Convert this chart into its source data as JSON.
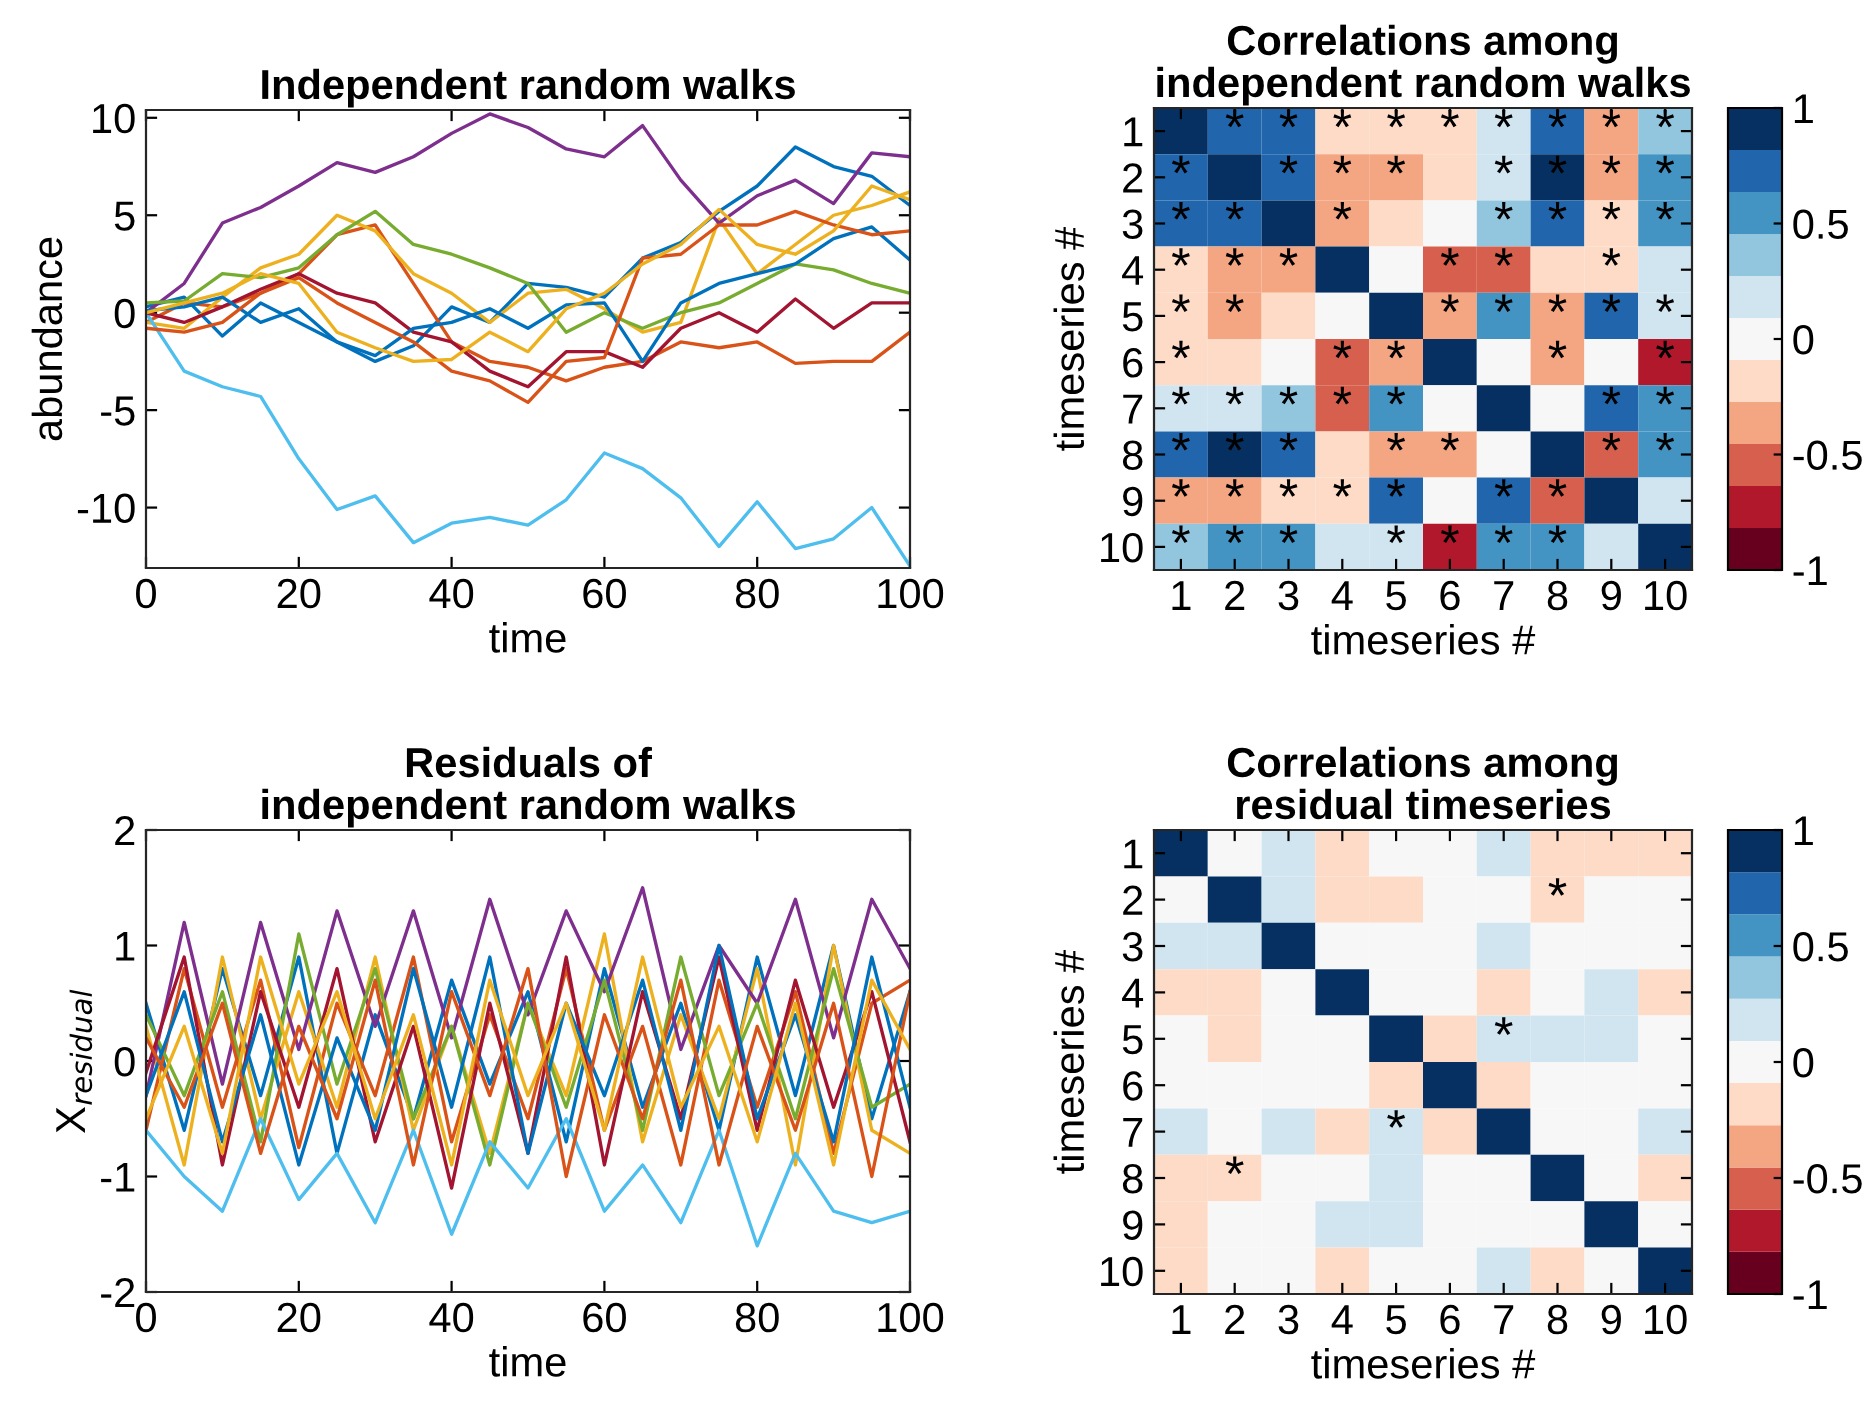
{
  "chart_data": [
    {
      "type": "line",
      "title": "Independent random walks",
      "xlabel": "time",
      "ylabel": "abundance",
      "x": [
        0,
        5,
        10,
        15,
        20,
        25,
        30,
        35,
        40,
        45,
        50,
        55,
        60,
        65,
        70,
        75,
        80,
        85,
        90,
        95,
        100
      ],
      "xlim": [
        0,
        100
      ],
      "xticks": [
        0,
        20,
        40,
        60,
        80,
        100
      ],
      "ylim": [
        -13.1,
        10.4
      ],
      "yticks": [
        -10,
        -5,
        0,
        5,
        10
      ],
      "grid": false,
      "series": [
        {
          "color": "#0072bd",
          "values": [
            0.3,
            0.8,
            -1.2,
            0.5,
            -0.5,
            -1.5,
            -2.5,
            -1.7,
            0.3,
            -0.5,
            1.5,
            1.3,
            0.8,
            2.8,
            3.6,
            5.2,
            6.5,
            8.5,
            7.5,
            7,
            5.5
          ]
        },
        {
          "color": "#d95319",
          "values": [
            -0.5,
            0.5,
            0.3,
            1.0,
            2.0,
            4.0,
            4.5,
            1.5,
            -1.5,
            -2.5,
            -2.8,
            -3.5,
            -2.8,
            -2.5,
            -1.5,
            -1.8,
            -1.5,
            -2.6,
            -2.5,
            -2.5,
            -1
          ]
        },
        {
          "color": "#edb120",
          "values": [
            -0.5,
            -0.8,
            0.8,
            2.3,
            3,
            5,
            4.2,
            2.0,
            1,
            -0.5,
            1,
            1.2,
            0.2,
            -1,
            -0.5,
            4.8,
            2,
            3.5,
            5,
            5.5,
            6.2
          ]
        },
        {
          "color": "#7e2f8e",
          "values": [
            0,
            1.5,
            4.6,
            5.4,
            6.5,
            7.7,
            7.2,
            8,
            9.2,
            10.2,
            9.5,
            8.4,
            8,
            9.6,
            6.8,
            4.6,
            6,
            6.8,
            5.6,
            8.2,
            8
          ]
        },
        {
          "color": "#77ac30",
          "values": [
            0.5,
            0.6,
            2,
            1.8,
            2.3,
            4,
            5.2,
            3.5,
            3,
            2.3,
            1.5,
            -1,
            0,
            -0.8,
            0,
            0.5,
            1.5,
            2.5,
            2.2,
            1.5,
            1
          ]
        },
        {
          "color": "#4dbeee",
          "values": [
            0,
            -3,
            -3.8,
            -4.3,
            -7.5,
            -10.1,
            -9.4,
            -11.8,
            -10.8,
            -10.5,
            -10.9,
            -9.6,
            -7.2,
            -8,
            -9.5,
            -12,
            -9.7,
            -12.1,
            -11.6,
            -10,
            -13
          ]
        },
        {
          "color": "#a2142f",
          "values": [
            0,
            -0.5,
            0.3,
            1.2,
            2,
            1,
            0.5,
            -1,
            -1.5,
            -3,
            -3.8,
            -2,
            -2,
            -2.8,
            -0.8,
            0,
            -1,
            0.7,
            -0.8,
            0.5,
            0.5
          ]
        },
        {
          "color": "#0072bd",
          "values": [
            0.1,
            0.3,
            0.8,
            -0.5,
            0.2,
            -1.5,
            -2.2,
            -0.8,
            -0.5,
            0.2,
            -0.8,
            0.4,
            0.5,
            -2.5,
            0.5,
            1.5,
            2,
            2.5,
            3.8,
            4.4,
            2.7
          ]
        },
        {
          "color": "#d95319",
          "values": [
            -0.8,
            -1,
            -0.5,
            1,
            1.8,
            0.5,
            -0.5,
            -1.5,
            -3,
            -3.5,
            -4.6,
            -2.5,
            -2.3,
            2.8,
            3.0,
            4.5,
            4.5,
            5.2,
            4.5,
            4,
            4.2
          ]
        },
        {
          "color": "#edb120",
          "values": [
            0,
            0.5,
            1,
            2,
            1.5,
            -1,
            -1.8,
            -2.5,
            -2.4,
            -1,
            -2,
            0.2,
            1,
            2.5,
            3.5,
            5.3,
            3.5,
            3,
            4.2,
            6.5,
            5.8
          ]
        }
      ]
    },
    {
      "type": "heatmap",
      "title": "Correlations among\nindependent random walks",
      "xlabel": "timeseries #",
      "ylabel": "timeseries #",
      "categories": [
        "1",
        "2",
        "3",
        "4",
        "5",
        "6",
        "7",
        "8",
        "9",
        "10"
      ],
      "y_categories": [
        "1",
        "2",
        "3",
        "4",
        "5",
        "6",
        "7",
        "8",
        "9",
        "10"
      ],
      "clim": [
        -1,
        1
      ],
      "cticks": [
        -1,
        -0.5,
        0,
        0.5,
        1
      ],
      "cells": [
        [
          1,
          0.7,
          0.7,
          -0.2,
          -0.2,
          -0.2,
          0.2,
          0.7,
          -0.35,
          0.35
        ],
        [
          0.7,
          1,
          0.7,
          -0.35,
          -0.35,
          -0.2,
          0.2,
          0.9,
          -0.35,
          0.55
        ],
        [
          0.7,
          0.7,
          1,
          -0.35,
          -0.2,
          0,
          0.35,
          0.7,
          -0.2,
          0.55
        ],
        [
          -0.2,
          -0.35,
          -0.35,
          1,
          0,
          -0.55,
          -0.55,
          -0.2,
          -0.2,
          0.2
        ],
        [
          -0.2,
          -0.35,
          -0.2,
          0,
          1,
          -0.35,
          0.55,
          -0.35,
          0.7,
          0.2
        ],
        [
          -0.2,
          -0.2,
          0,
          -0.55,
          -0.35,
          1,
          0,
          -0.35,
          0,
          -0.7
        ],
        [
          0.2,
          0.2,
          0.35,
          -0.55,
          0.55,
          0,
          1,
          0,
          0.7,
          0.55
        ],
        [
          0.7,
          0.9,
          0.7,
          -0.2,
          -0.35,
          -0.35,
          0,
          1,
          -0.55,
          0.55
        ],
        [
          -0.35,
          -0.35,
          -0.2,
          -0.2,
          0.7,
          0,
          0.7,
          -0.55,
          1,
          0.2
        ],
        [
          0.35,
          0.55,
          0.55,
          0.2,
          0.2,
          -0.7,
          0.55,
          0.55,
          0.2,
          1
        ]
      ],
      "cell_labels": [
        [
          null,
          "*",
          "*",
          "*",
          "*",
          "*",
          "*",
          "*",
          "*",
          "*"
        ],
        [
          "*",
          null,
          "*",
          "*",
          "*",
          null,
          "*",
          "*",
          "*",
          "*"
        ],
        [
          "*",
          "*",
          null,
          "*",
          null,
          null,
          "*",
          "*",
          "*",
          "*"
        ],
        [
          "*",
          "*",
          "*",
          null,
          null,
          "*",
          "*",
          null,
          "*",
          null
        ],
        [
          "*",
          "*",
          null,
          null,
          null,
          "*",
          "*",
          "*",
          "*",
          "*"
        ],
        [
          "*",
          null,
          null,
          "*",
          "*",
          null,
          null,
          "*",
          null,
          "*"
        ],
        [
          "*",
          "*",
          "*",
          "*",
          "*",
          null,
          null,
          null,
          "*",
          "*"
        ],
        [
          "*",
          "*",
          "*",
          null,
          "*",
          "*",
          null,
          null,
          "*",
          "*"
        ],
        [
          "*",
          "*",
          "*",
          "*",
          "*",
          null,
          "*",
          "*",
          null,
          null
        ],
        [
          "*",
          "*",
          "*",
          null,
          "*",
          "*",
          "*",
          "*",
          null,
          null
        ]
      ]
    },
    {
      "type": "line",
      "title": "Residuals of\nindependent random walks",
      "xlabel": "time",
      "ylabel": "X$_{residual}$",
      "x": [
        0,
        5,
        10,
        15,
        20,
        25,
        30,
        35,
        40,
        45,
        50,
        55,
        60,
        65,
        70,
        75,
        80,
        85,
        90,
        95,
        100
      ],
      "xlim": [
        0,
        100
      ],
      "xticks": [
        0,
        20,
        40,
        60,
        80,
        100
      ],
      "ylim": [
        -2,
        2
      ],
      "yticks": [
        -2,
        -1,
        0,
        1,
        2
      ],
      "grid": false,
      "series": [
        {
          "color": "#0072bd",
          "values": [
            0.5,
            -0.6,
            0.8,
            -0.3,
            0.9,
            -0.8,
            0.4,
            -0.5,
            0.7,
            -0.2,
            0.6,
            -0.7,
            0.8,
            -0.4,
            0.5,
            -0.6,
            0.9,
            -0.3,
            1.0,
            -0.5,
            0.6
          ]
        },
        {
          "color": "#d95319",
          "values": [
            -0.6,
            0.8,
            -0.4,
            0.7,
            -0.75,
            0.5,
            -0.3,
            0.9,
            -0.7,
            0.4,
            -0.5,
            0.8,
            -0.6,
            0.3,
            -0.9,
            0.7,
            -0.4,
            0.6,
            -0.8,
            0.5,
            0.7
          ]
        },
        {
          "color": "#edb120",
          "values": [
            0.3,
            -0.9,
            0.9,
            -0.5,
            0.6,
            -0.4,
            0.9,
            -0.6,
            0.3,
            -0.8,
            0.5,
            -0.3,
            1.1,
            -0.7,
            0.4,
            -0.5,
            0.8,
            -0.9,
            1.0,
            -0.6,
            -0.8
          ]
        },
        {
          "color": "#7e2f8e",
          "values": [
            -0.3,
            1.2,
            -0.2,
            1.2,
            0.1,
            1.3,
            0.3,
            1.3,
            0.2,
            1.4,
            0.4,
            1.3,
            0.6,
            1.5,
            0.1,
            1.0,
            0.5,
            1.4,
            0.2,
            1.4,
            0.8
          ]
        },
        {
          "color": "#77ac30",
          "values": [
            0.4,
            -0.3,
            0.6,
            -0.7,
            1.1,
            -0.2,
            0.8,
            -0.5,
            0.3,
            -0.9,
            0.5,
            -0.4,
            0.7,
            -0.6,
            0.9,
            -0.3,
            0.5,
            -0.5,
            0.8,
            -0.4,
            -0.2
          ]
        },
        {
          "color": "#4dbeee",
          "values": [
            -0.6,
            -1.0,
            -1.3,
            -0.5,
            -1.2,
            -0.8,
            -1.4,
            -0.6,
            -1.5,
            -0.7,
            -1.1,
            -0.5,
            -1.3,
            -0.9,
            -1.4,
            -0.6,
            -1.6,
            -0.8,
            -1.3,
            -1.4,
            -1.3
          ]
        },
        {
          "color": "#a2142f",
          "values": [
            -0.1,
            0.9,
            -0.9,
            0.6,
            -0.4,
            0.8,
            -0.7,
            0.3,
            -1.1,
            0.5,
            -0.8,
            0.9,
            -0.9,
            0.6,
            -0.5,
            0.9,
            -0.6,
            0.7,
            -0.4,
            0.6,
            -0.7
          ]
        },
        {
          "color": "#0072bd",
          "values": [
            -0.3,
            0.6,
            -0.7,
            0.4,
            -0.9,
            0.2,
            -0.6,
            0.8,
            -0.4,
            0.9,
            -0.8,
            0.5,
            -0.3,
            0.7,
            -0.6,
            1.0,
            -0.5,
            0.4,
            -0.7,
            0.9,
            -0.4
          ]
        },
        {
          "color": "#d95319",
          "values": [
            0.2,
            -0.4,
            0.5,
            -0.8,
            0.3,
            -0.5,
            0.7,
            -0.9,
            0.6,
            -0.3,
            0.8,
            -1.0,
            0.4,
            -0.5,
            0.7,
            -0.9,
            0.3,
            -0.6,
            0.5,
            -1.0,
            0.6
          ]
        },
        {
          "color": "#edb120",
          "values": [
            -0.5,
            0.3,
            -0.8,
            0.9,
            -0.2,
            0.6,
            -0.5,
            0.4,
            -0.9,
            0.7,
            -0.3,
            0.5,
            -0.6,
            0.9,
            -0.4,
            0.3,
            -0.7,
            0.5,
            -0.9,
            0.7,
            0.1
          ]
        }
      ]
    },
    {
      "type": "heatmap",
      "title": "Correlations among\nresidual timeseries",
      "xlabel": "timeseries #",
      "ylabel": "timeseries #",
      "categories": [
        "1",
        "2",
        "3",
        "4",
        "5",
        "6",
        "7",
        "8",
        "9",
        "10"
      ],
      "y_categories": [
        "1",
        "2",
        "3",
        "4",
        "5",
        "6",
        "7",
        "8",
        "9",
        "10"
      ],
      "clim": [
        -1,
        1
      ],
      "cticks": [
        -1,
        -0.5,
        0,
        0.5,
        1
      ],
      "cells": [
        [
          1,
          0,
          0.2,
          -0.2,
          0,
          0,
          0.2,
          -0.2,
          -0.2,
          -0.2
        ],
        [
          0,
          1,
          0.2,
          -0.2,
          -0.2,
          0,
          0,
          -0.2,
          0,
          0
        ],
        [
          0.2,
          0.2,
          1,
          0,
          0,
          0,
          0.2,
          0,
          0,
          0
        ],
        [
          -0.2,
          -0.2,
          0,
          1,
          0,
          0,
          -0.2,
          0,
          0.2,
          -0.2
        ],
        [
          0,
          -0.2,
          0,
          0,
          1,
          -0.2,
          0.2,
          0.2,
          0.2,
          0
        ],
        [
          0,
          0,
          0,
          0,
          -0.2,
          1,
          -0.2,
          0,
          0,
          0
        ],
        [
          0.2,
          0,
          0.2,
          -0.2,
          0.2,
          -0.2,
          1,
          0,
          0,
          0.2
        ],
        [
          -0.2,
          -0.2,
          0,
          0,
          0.2,
          0,
          0,
          1,
          0,
          -0.2
        ],
        [
          -0.2,
          0,
          0,
          0.2,
          0.2,
          0,
          0,
          0,
          1,
          0
        ],
        [
          -0.2,
          0,
          0,
          -0.2,
          0,
          0,
          0.2,
          -0.2,
          0,
          1
        ]
      ],
      "cell_labels": [
        [
          null,
          null,
          null,
          null,
          null,
          null,
          null,
          null,
          null,
          null
        ],
        [
          null,
          null,
          null,
          null,
          null,
          null,
          null,
          "*",
          null,
          null
        ],
        [
          null,
          null,
          null,
          null,
          null,
          null,
          null,
          null,
          null,
          null
        ],
        [
          null,
          null,
          null,
          null,
          null,
          null,
          null,
          null,
          null,
          null
        ],
        [
          null,
          null,
          null,
          null,
          null,
          null,
          "*",
          null,
          null,
          null
        ],
        [
          null,
          null,
          null,
          null,
          null,
          null,
          null,
          null,
          null,
          null
        ],
        [
          null,
          null,
          null,
          null,
          "*",
          null,
          null,
          null,
          null,
          null
        ],
        [
          null,
          "*",
          null,
          null,
          null,
          null,
          null,
          null,
          null,
          null
        ],
        [
          null,
          null,
          null,
          null,
          null,
          null,
          null,
          null,
          null,
          null
        ],
        [
          null,
          null,
          null,
          null,
          null,
          null,
          null,
          null,
          null,
          null
        ]
      ]
    }
  ]
}
